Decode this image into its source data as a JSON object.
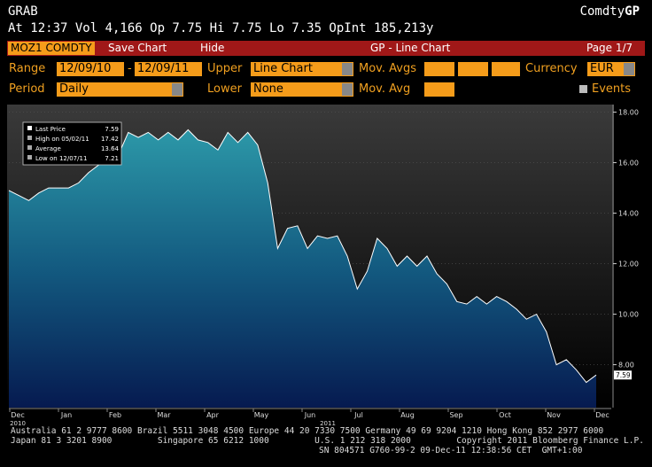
{
  "header": {
    "screen": "GRAB",
    "brand": "Comdty",
    "brand_suffix": "GP",
    "quote": "At 12:37 Vol 4,166 Op 7.75 Hi 7.75 Lo 7.35 OpInt 185,213y"
  },
  "toolbar": {
    "ticker": "MOZ1 COMDTY",
    "save": "Save Chart",
    "hide": "Hide",
    "title": "GP - Line Chart",
    "page": "Page 1/7"
  },
  "controls": {
    "range_label": "Range",
    "range_start": "12/09/10",
    "range_sep": "-",
    "range_end": "12/09/11",
    "upper_label": "Upper",
    "upper_value": "Line Chart",
    "mov_avgs_label": "Mov. Avgs",
    "currency_label": "Currency",
    "currency_value": "EUR",
    "period_label": "Period",
    "period_value": "Daily",
    "lower_label": "Lower",
    "lower_value": "None",
    "mov_avg_label": "Mov. Avg",
    "events_label": "Events"
  },
  "chart_data": {
    "type": "line",
    "color": "#ffffff",
    "values": [
      14.9,
      14.7,
      14.5,
      14.8,
      15.0,
      15.0,
      15.0,
      15.2,
      15.6,
      15.9,
      16.2,
      16.3,
      17.2,
      17.0,
      17.2,
      16.9,
      17.2,
      16.9,
      17.3,
      16.9,
      16.8,
      16.5,
      17.2,
      16.8,
      17.2,
      16.7,
      15.2,
      12.6,
      13.4,
      13.5,
      12.6,
      13.1,
      13.0,
      13.1,
      12.3,
      11.0,
      11.7,
      13.0,
      12.6,
      11.9,
      12.3,
      11.9,
      12.3,
      11.6,
      11.2,
      10.5,
      10.4,
      10.7,
      10.4,
      10.7,
      10.5,
      10.2,
      9.8,
      10.0,
      9.3,
      8.0,
      8.2,
      7.8,
      7.3,
      7.59
    ],
    "x_labels": [
      "Dec",
      "Jan",
      "Feb",
      "Mar",
      "Apr",
      "May",
      "Jun",
      "Jul",
      "Aug",
      "Sep",
      "Oct",
      "Nov",
      "Dec"
    ],
    "year_labels": [
      "2010",
      "2011"
    ],
    "ylim": [
      6.3,
      18.3
    ],
    "yticks": [
      {
        "value": 8,
        "label": "8.00"
      },
      {
        "value": 10,
        "label": "10.00"
      },
      {
        "value": 12,
        "label": "12.00"
      },
      {
        "value": 14,
        "label": "14.00"
      },
      {
        "value": 16,
        "label": "16.00"
      },
      {
        "value": 18,
        "label": "18.00"
      }
    ],
    "grid": true,
    "legend": [
      {
        "label": "Last Price",
        "value": 7.59,
        "value_label": "7.59"
      },
      {
        "label": "High on 05/02/11",
        "value": 17.42,
        "value_label": "17.42"
      },
      {
        "label": "Average",
        "value": 13.64,
        "value_label": "13.64"
      },
      {
        "label": "Low on 12/07/11",
        "value": 7.21,
        "value_label": "7.21"
      }
    ]
  },
  "footer": {
    "lines": [
      "Australia 61 2 9777 8600 Brazil 5511 3048 4500 Europe 44 20 7330 7500 Germany 49 69 9204 1210 Hong Kong 852 2977 6000",
      "Japan 81 3 3201 8900         Singapore 65 6212 1000         U.S. 1 212 318 2000         Copyright 2011 Bloomberg Finance L.P.",
      "SN 804571 G760-99-2 09-Dec-11 12:38:56 CET  GMT+1:00"
    ]
  }
}
